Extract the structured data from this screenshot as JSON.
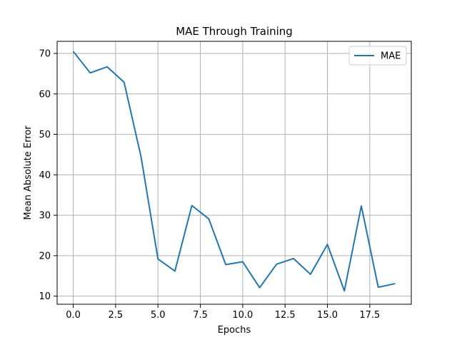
{
  "chart_data": {
    "type": "line",
    "title": "MAE Through Training",
    "xlabel": "Epochs",
    "ylabel": "Mean Absolute Error",
    "xlim": [
      -0.95,
      19.95
    ],
    "ylim": [
      8.0,
      73.0
    ],
    "x_ticks": [
      0.0,
      2.5,
      5.0,
      7.5,
      10.0,
      12.5,
      15.0,
      17.5
    ],
    "x_tick_labels": [
      "0.0",
      "2.5",
      "5.0",
      "7.5",
      "10.0",
      "12.5",
      "15.0",
      "17.5"
    ],
    "y_ticks": [
      10,
      20,
      30,
      40,
      50,
      60,
      70
    ],
    "y_tick_labels": [
      "10",
      "20",
      "30",
      "40",
      "50",
      "60",
      "70"
    ],
    "grid": true,
    "legend_position": "top-right",
    "x": [
      0,
      1,
      2,
      3,
      4,
      5,
      6,
      7,
      8,
      9,
      10,
      11,
      12,
      13,
      14,
      15,
      16,
      17,
      18,
      19
    ],
    "series": [
      {
        "name": "MAE",
        "color": "#1f77b4",
        "values": [
          70.5,
          65.2,
          66.7,
          62.9,
          44.5,
          19.2,
          16.2,
          32.4,
          29.1,
          17.8,
          18.5,
          12.1,
          17.9,
          19.3,
          15.4,
          22.8,
          11.3,
          32.3,
          12.2,
          13.1
        ]
      }
    ]
  }
}
